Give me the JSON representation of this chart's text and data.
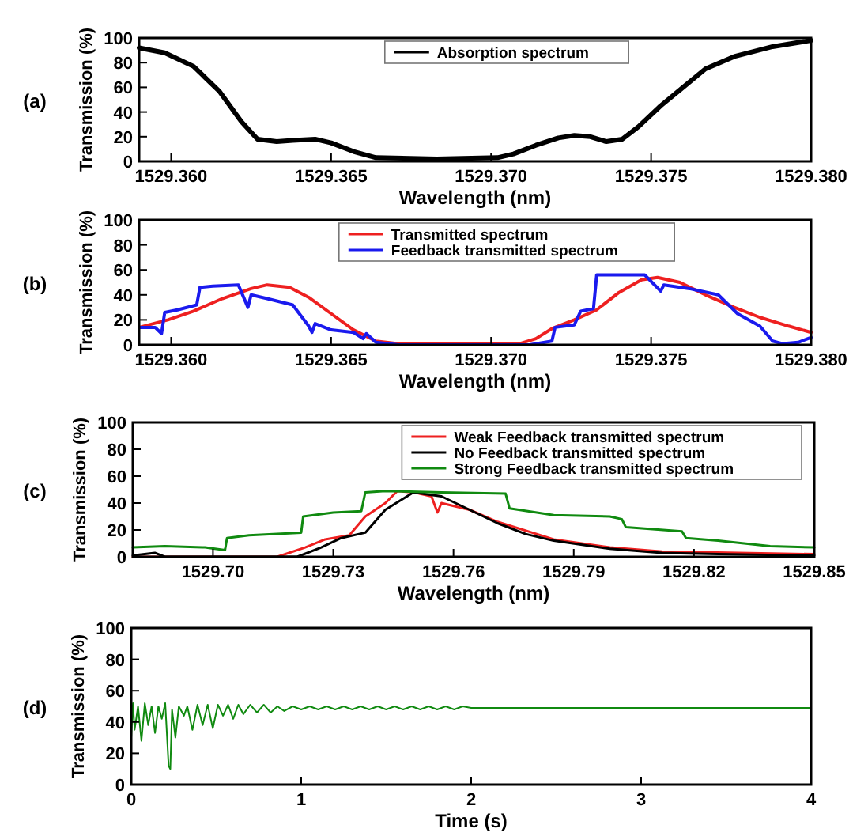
{
  "chart_data": [
    {
      "type": "line",
      "xlabel": "Wavelength (nm)",
      "ylabel": "Transmission (%)",
      "annotations": [
        "(a)"
      ],
      "legend": "top",
      "xlim": [
        1529.359,
        1529.38
      ],
      "ylim": [
        0,
        100
      ],
      "xticks": [
        {
          "value": 1529.36,
          "label": "1529.360"
        },
        1529.365,
        {
          "value": 1529.37,
          "label": "1529.370"
        },
        1529.375,
        {
          "value": 1529.38,
          "label": "1529.380"
        }
      ],
      "yticks": [
        0,
        20,
        40,
        60,
        80,
        100
      ],
      "series": [
        {
          "name": "Absorption spectrum",
          "color": "#000000",
          "x": [
            1529.359,
            1529.3598,
            1529.3607,
            1529.3615,
            1529.3622,
            1529.3627,
            1529.3633,
            1529.3638,
            1529.3645,
            1529.365,
            1529.3657,
            1529.3664,
            1529.3683,
            1529.3702,
            1529.3707,
            1529.3714,
            1529.3721,
            1529.3726,
            1529.3731,
            1529.3736,
            1529.3741,
            1529.3746,
            1529.3753,
            1529.376,
            1529.3767,
            1529.3776,
            1529.3788,
            1529.38
          ],
          "values": [
            92,
            88,
            77,
            57,
            32,
            18,
            16,
            17,
            18,
            15,
            8,
            3,
            2,
            3,
            6,
            13,
            19,
            21,
            20,
            16,
            18,
            28,
            45,
            60,
            75,
            85,
            93,
            98
          ]
        }
      ]
    },
    {
      "type": "line",
      "xlabel": "Wavelength (nm)",
      "ylabel": "Transmission (%)",
      "annotations": [
        "(b)"
      ],
      "legend": "top",
      "xlim": [
        1529.359,
        1529.38
      ],
      "ylim": [
        0,
        100
      ],
      "xticks": [
        {
          "value": 1529.36,
          "label": "1529.360"
        },
        1529.365,
        {
          "value": 1529.37,
          "label": "1529.370"
        },
        1529.375,
        {
          "value": 1529.38,
          "label": "1529.380"
        }
      ],
      "yticks": [
        0,
        20,
        40,
        60,
        80,
        100
      ],
      "series": [
        {
          "name": "Transmitted spectrum",
          "color": "#ee2020",
          "x": [
            1529.359,
            1529.3599,
            1529.3607,
            1529.3616,
            1529.3625,
            1529.363,
            1529.3637,
            1529.3643,
            1529.365,
            1529.3657,
            1529.3664,
            1529.3671,
            1529.3709,
            1529.3714,
            1529.3719,
            1529.3726,
            1529.3733,
            1529.374,
            1529.3747,
            1529.3752,
            1529.3759,
            1529.3767,
            1529.3776,
            1529.3784,
            1529.3793,
            1529.38
          ],
          "values": [
            14,
            20,
            27,
            37,
            45,
            48,
            46,
            38,
            25,
            12,
            3,
            1,
            1,
            5,
            13,
            20,
            28,
            42,
            52,
            54,
            50,
            40,
            30,
            22,
            15,
            10
          ]
        },
        {
          "name": "Feedback transmitted spectrum",
          "color": "#1a1aee",
          "x": [
            1529.359,
            1529.3595,
            1529.3597,
            1529.3598,
            1529.3602,
            1529.3608,
            1529.3609,
            1529.3613,
            1529.3621,
            1529.3624,
            1529.3625,
            1529.363,
            1529.3638,
            1529.3643,
            1529.3644,
            1529.3645,
            1529.365,
            1529.3657,
            1529.366,
            1529.3661,
            1529.3664,
            1529.3671,
            1529.3712,
            1529.3719,
            1529.372,
            1529.3726,
            1529.3728,
            1529.3732,
            1529.3733,
            1529.3748,
            1529.3753,
            1529.3754,
            1529.3762,
            1529.3771,
            1529.3777,
            1529.3784,
            1529.3788,
            1529.3791,
            1529.3796,
            1529.38
          ],
          "values": [
            14,
            14,
            9,
            26,
            28,
            32,
            46,
            47,
            48,
            30,
            40,
            37,
            32,
            15,
            10,
            17,
            12,
            10,
            5,
            9,
            2,
            0,
            0,
            3,
            14,
            16,
            27,
            29,
            56,
            56,
            43,
            48,
            45,
            40,
            25,
            15,
            3,
            1,
            2,
            6
          ]
        }
      ]
    },
    {
      "type": "line",
      "xlabel": "Wavelength (nm)",
      "ylabel": "Transmission (%)",
      "annotations": [
        "(c)"
      ],
      "legend": "top right",
      "xlim": [
        1529.68,
        1529.85
      ],
      "ylim": [
        0,
        100
      ],
      "xticks": [
        {
          "value": 1529.7,
          "label": "1529.70"
        },
        1529.73,
        1529.76,
        1529.79,
        1529.82,
        {
          "value": 1529.85,
          "label": "1529.85"
        }
      ],
      "yticks": [
        0,
        20,
        40,
        60,
        80,
        100
      ],
      "series": [
        {
          "name": "Weak Feedback transmitted spectrum",
          "color": "#ee2020",
          "x": [
            1529.68,
            1529.716,
            1529.723,
            1529.728,
            1529.734,
            1529.738,
            1529.743,
            1529.746,
            1529.75,
            1529.7545,
            1529.756,
            1529.757,
            1529.764,
            1529.771,
            1529.785,
            1529.799,
            1529.812,
            1529.85
          ],
          "values": [
            0,
            0,
            7,
            13,
            16,
            30,
            40,
            49,
            48,
            45,
            33,
            40,
            35,
            26,
            13,
            7,
            4,
            2
          ]
        },
        {
          "name": "No Feedback transmitted spectrum",
          "color": "#000000",
          "x": [
            1529.68,
            1529.6855,
            1529.688,
            1529.721,
            1529.727,
            1529.732,
            1529.738,
            1529.743,
            1529.75,
            1529.757,
            1529.764,
            1529.771,
            1529.778,
            1529.785,
            1529.799,
            1529.812,
            1529.826,
            1529.85
          ],
          "values": [
            1,
            3,
            0,
            0,
            7,
            14,
            18,
            35,
            48,
            45,
            35,
            25,
            17,
            12,
            6,
            3,
            2,
            1
          ]
        },
        {
          "name": "Strong Feedback transmitted spectrum",
          "color": "#108a10",
          "x": [
            1529.68,
            1529.688,
            1529.698,
            1529.703,
            1529.7035,
            1529.709,
            1529.722,
            1529.7225,
            1529.73,
            1529.737,
            1529.738,
            1529.743,
            1529.757,
            1529.773,
            1529.774,
            1529.785,
            1529.799,
            1529.802,
            1529.803,
            1529.817,
            1529.818,
            1529.826,
            1529.839,
            1529.85
          ],
          "values": [
            7,
            8,
            7,
            5,
            14,
            16,
            18,
            30,
            33,
            34,
            48,
            49,
            48,
            47,
            36,
            31,
            30,
            28,
            22,
            19,
            14,
            12,
            8,
            7
          ]
        }
      ]
    },
    {
      "type": "line",
      "xlabel": "Time (s)",
      "ylabel": "Transmission (%)",
      "annotations": [
        "(d)"
      ],
      "xlim": [
        0,
        4
      ],
      "ylim": [
        0,
        100
      ],
      "xticks": [
        0,
        1,
        2,
        3,
        4
      ],
      "yticks": [
        0,
        20,
        40,
        60,
        80,
        100
      ],
      "series": [
        {
          "color": "#108a10",
          "x": [
            0,
            0.01,
            0.02,
            0.04,
            0.06,
            0.08,
            0.1,
            0.12,
            0.14,
            0.16,
            0.18,
            0.2,
            0.22,
            0.23,
            0.24,
            0.26,
            0.28,
            0.31,
            0.33,
            0.36,
            0.39,
            0.42,
            0.45,
            0.48,
            0.51,
            0.54,
            0.57,
            0.6,
            0.63,
            0.66,
            0.7,
            0.74,
            0.78,
            0.82,
            0.86,
            0.9,
            0.95,
            1,
            1.05,
            1.1,
            1.15,
            1.2,
            1.25,
            1.3,
            1.35,
            1.4,
            1.45,
            1.5,
            1.55,
            1.6,
            1.65,
            1.7,
            1.75,
            1.8,
            1.85,
            1.9,
            1.95,
            2,
            2.5,
            3,
            3.5,
            4
          ],
          "values": [
            30,
            52,
            35,
            50,
            28,
            52,
            38,
            50,
            33,
            50,
            42,
            52,
            12,
            10,
            48,
            30,
            50,
            44,
            50,
            35,
            51,
            38,
            51,
            36,
            51,
            44,
            51,
            42,
            51,
            45,
            51,
            46,
            51,
            46,
            50,
            47,
            50,
            48,
            50,
            48,
            50,
            48,
            50,
            48,
            50,
            48,
            50,
            48,
            50,
            48,
            50,
            48,
            50,
            48,
            50,
            48,
            50,
            49,
            49,
            49,
            49,
            49
          ]
        }
      ]
    }
  ]
}
